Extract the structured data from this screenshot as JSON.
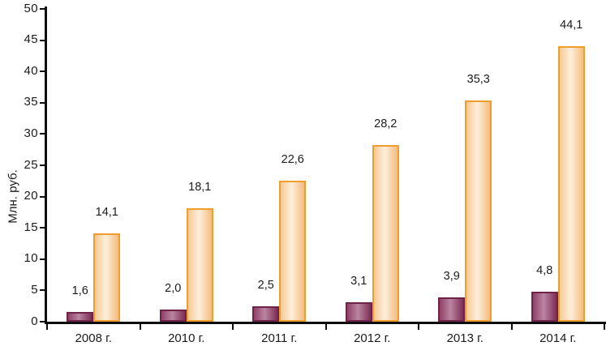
{
  "chart_data": {
    "type": "bar",
    "title": "",
    "ylabel": "Млн. руб.",
    "xlabel": "",
    "ylim": [
      0,
      50
    ],
    "ytick_step": 5,
    "yticks": [
      0,
      5,
      10,
      15,
      20,
      25,
      30,
      35,
      40,
      45,
      50
    ],
    "grid": false,
    "legend": false,
    "categories": [
      "2008 г.",
      "2010 г.",
      "2011 г.",
      "2012 г.",
      "2013 г.",
      "2014 г."
    ],
    "series": [
      {
        "name": "",
        "values": [
          1.6,
          2.0,
          2.5,
          3.1,
          3.9,
          4.8
        ],
        "labels": [
          "1,6",
          "2,0",
          "2,5",
          "3,1",
          "3,9",
          "4,8"
        ],
        "border_color": "#6F2349",
        "fill_edge_left": "#8E4168",
        "fill_center": "#BB85A1",
        "fill_edge_right": "#7C2D54"
      },
      {
        "name": "",
        "values": [
          14.1,
          18.1,
          22.6,
          28.2,
          35.3,
          44.1
        ],
        "labels": [
          "14,1",
          "18,1",
          "22,6",
          "28,2",
          "35,3",
          "44,1"
        ],
        "border_color": "#EE9D2E",
        "fill_edge_left": "#F7C993",
        "fill_center": "#FDEFDC",
        "fill_edge_right": "#F5BC7E"
      }
    ],
    "axis_color": "#0d0d0d"
  }
}
